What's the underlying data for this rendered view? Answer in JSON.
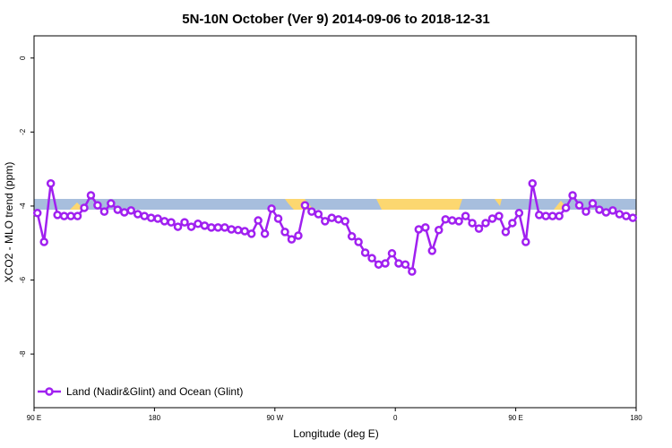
{
  "chart_data": {
    "type": "line",
    "title": "5N-10N October (Ver 9)   2014-09-06 to 2018-12-31",
    "x_label": "Longitude (deg E)",
    "y_label": "XCO2 - MLO trend (ppm)",
    "xlim": [
      90,
      540
    ],
    "ylim": [
      -9.45,
      0.6
    ],
    "xticks": [
      {
        "value": 90,
        "label": "90 E"
      },
      180,
      {
        "value": 270,
        "label": "90 W"
      },
      {
        "value": 360,
        "label": "0"
      },
      {
        "value": 450,
        "label": "90 E"
      },
      {
        "value": 540,
        "label": "180"
      }
    ],
    "yticks": [
      0,
      -2,
      -4,
      -6,
      -8
    ],
    "legend": "bottom-left",
    "x": [
      92.5,
      97.5,
      102.5,
      107.5,
      112.5,
      117.5,
      122.5,
      127.5,
      132.5,
      137.5,
      142.5,
      147.5,
      152.5,
      157.5,
      162.5,
      167.5,
      172.5,
      177.5,
      182.5,
      187.5,
      192.5,
      197.5,
      202.5,
      207.5,
      212.5,
      217.5,
      222.5,
      227.5,
      232.5,
      237.5,
      242.5,
      247.5,
      252.5,
      257.5,
      262.5,
      267.5,
      272.5,
      277.5,
      282.5,
      287.5,
      292.5,
      297.5,
      302.5,
      307.5,
      312.5,
      317.5,
      322.5,
      327.5,
      332.5,
      337.5,
      342.5,
      347.5,
      352.5,
      357.5,
      362.5,
      367.5,
      372.5,
      377.5,
      382.5,
      387.5,
      392.5,
      397.5,
      402.5,
      407.5,
      412.5,
      417.5,
      422.5,
      427.5,
      432.5,
      437.5,
      442.5,
      447.5,
      452.5,
      457.5,
      462.5,
      467.5,
      472.5,
      477.5,
      482.5,
      487.5,
      492.5,
      497.5,
      502.5,
      507.5,
      512.5,
      517.5,
      522.5,
      527.5,
      532.5,
      537.5
    ],
    "series": [
      {
        "name": "Land (Nadir&Glint) and Ocean (Glint)",
        "color": "#a020f0",
        "values": [
          -4.19,
          -4.97,
          -3.39,
          -4.24,
          -4.27,
          -4.27,
          -4.27,
          -4.05,
          -3.71,
          -3.98,
          -4.15,
          -3.93,
          -4.1,
          -4.17,
          -4.12,
          -4.22,
          -4.27,
          -4.32,
          -4.34,
          -4.41,
          -4.44,
          -4.56,
          -4.44,
          -4.56,
          -4.48,
          -4.53,
          -4.58,
          -4.58,
          -4.58,
          -4.63,
          -4.65,
          -4.68,
          -4.75,
          -4.39,
          -4.75,
          -4.07,
          -4.34,
          -4.7,
          -4.9,
          -4.8,
          -3.98,
          -4.15,
          -4.22,
          -4.41,
          -4.32,
          -4.36,
          -4.41,
          -4.82,
          -4.97,
          -5.26,
          -5.41,
          -5.58,
          -5.55,
          -5.28,
          -5.55,
          -5.58,
          -5.77,
          -4.63,
          -4.58,
          -5.21,
          -4.65,
          -4.36,
          -4.39,
          -4.41,
          -4.27,
          -4.46,
          -4.61,
          -4.46,
          -4.34,
          -4.27,
          -4.7,
          -4.46,
          -4.19,
          -4.97,
          -3.39,
          -4.24,
          -4.27,
          -4.27,
          -4.27,
          -4.05,
          -3.71,
          -3.98,
          -4.15,
          -3.93,
          -4.1,
          -4.17,
          -4.12,
          -4.22,
          -4.27,
          -4.32
        ]
      }
    ]
  }
}
